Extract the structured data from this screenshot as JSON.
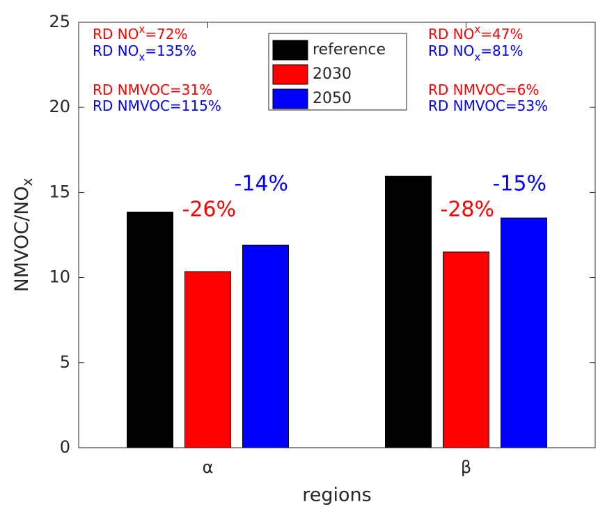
{
  "chart_data": {
    "type": "bar",
    "categories": [
      "α",
      "β"
    ],
    "series": [
      {
        "name": "reference",
        "color": "#000000",
        "values": [
          13.85,
          15.95
        ]
      },
      {
        "name": "2030",
        "color": "#ff0000",
        "values": [
          10.35,
          11.5
        ],
        "change_labels": [
          "-26%",
          "-28%"
        ]
      },
      {
        "name": "2050",
        "color": "#0000ff",
        "values": [
          11.9,
          13.5
        ],
        "change_labels": [
          "-14%",
          "-15%"
        ]
      }
    ],
    "x_label": "regions",
    "y_label": [
      "NMVOC/NO",
      "x"
    ],
    "ylim": [
      0,
      25
    ],
    "yticks": [
      0,
      5,
      10,
      15,
      20,
      25
    ],
    "legend": "top-center",
    "notes": [
      [
        {
          "color": "#ff0000",
          "script": "super",
          "text": [
            "RD NO",
            "x",
            "=72%"
          ]
        },
        {
          "color": "#0000ff",
          "script": "sub",
          "text": [
            "RD NO",
            "x",
            "=135%"
          ]
        },
        {
          "color": "#ff0000",
          "text": [
            "RD NMVOC=31%"
          ]
        },
        {
          "color": "#0000ff",
          "text": [
            "RD NMVOC=115%"
          ]
        }
      ],
      [
        {
          "color": "#ff0000",
          "script": "super",
          "text": [
            "RD NO",
            "x",
            "=47%"
          ]
        },
        {
          "color": "#0000ff",
          "script": "sub",
          "text": [
            "RD NO",
            "x",
            "=81%"
          ]
        },
        {
          "color": "#ff0000",
          "text": [
            "RD NMVOC=6%"
          ]
        },
        {
          "color": "#0000ff",
          "text": [
            "RD NMVOC=53%"
          ]
        }
      ]
    ]
  }
}
